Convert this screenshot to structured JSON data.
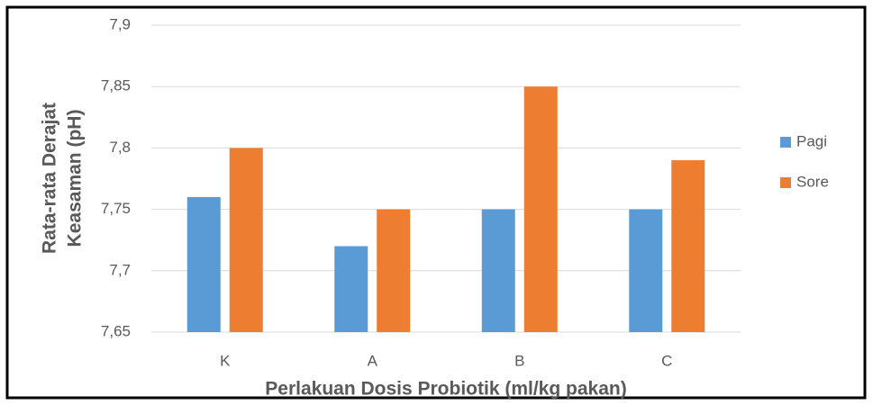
{
  "chart_data": {
    "type": "bar",
    "xlabel": "Perlakuan Dosis Probiotik (ml/kg pakan)",
    "ylabel": [
      "Rata-rata Derajat",
      "Keasaman (pH)"
    ],
    "categories": [
      "K",
      "A",
      "B",
      "C"
    ],
    "series": [
      {
        "name": "Pagi",
        "color": "#5b9bd5",
        "values": [
          7.76,
          7.72,
          7.75,
          7.75
        ]
      },
      {
        "name": "Sore",
        "color": "#ed7d31",
        "values": [
          7.8,
          7.75,
          7.85,
          7.79
        ]
      }
    ],
    "ylim": [
      7.65,
      7.9
    ],
    "yticks": [
      {
        "value": 7.65,
        "label": "7,65"
      },
      {
        "value": 7.7,
        "label": "7,7"
      },
      {
        "value": 7.75,
        "label": "7,75"
      },
      {
        "value": 7.8,
        "label": "7,8"
      },
      {
        "value": 7.85,
        "label": "7,85"
      },
      {
        "value": 7.9,
        "label": "7,9"
      }
    ],
    "grid": true,
    "legend": "right"
  }
}
